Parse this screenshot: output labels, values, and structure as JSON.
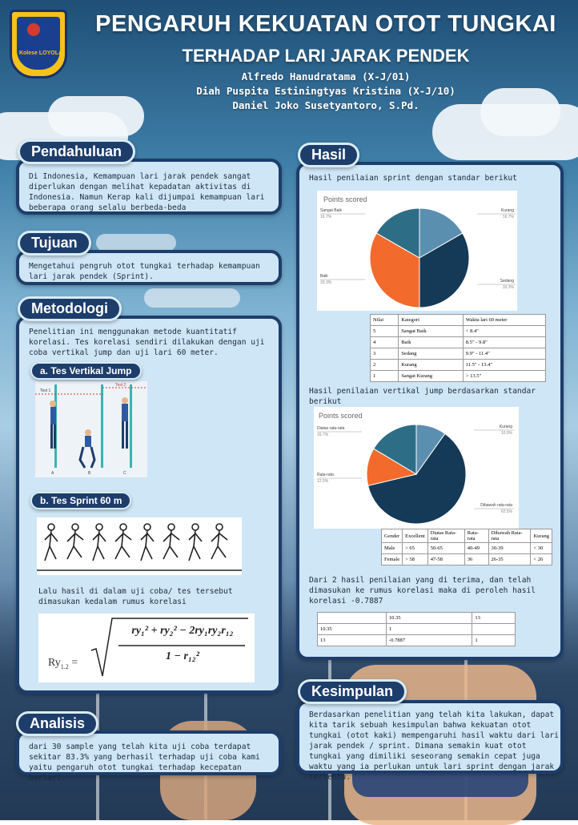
{
  "header": {
    "title_line1": "PENGARUH KEKUATAN OTOT TUNGKAI",
    "title_line2": "TERHADAP LARI JARAK PENDEK",
    "authors": [
      "Alfredo Hanudratama (X-J/01)",
      "Diah Puspita Estiningtyas Kristina (X-J/10)",
      "Daniel Joko Susetyantoro, S.Pd."
    ],
    "logo_text": "Kolese LOYOLA"
  },
  "pendahuluan": {
    "heading": "Pendahuluan",
    "body": "Di Indonesia, Kemampuan lari jarak pendek sangat diperlukan dengan melihat kepadatan aktivitas di Indonesia. Namun Kerap kali dijumpai kemampuan lari beberapa orang selalu berbeda-beda"
  },
  "tujuan": {
    "heading": "Tujuan",
    "body": "Mengetahui pengruh otot tungkai terhadap kemampuan lari jarak pendek (Sprint)."
  },
  "metodologi": {
    "heading": "Metodologi",
    "body": "Penelitian ini menggunakan metode kuantitatif korelasi. Tes korelasi sendiri dilakukan dengan uji coba vertikal jump dan uji lari 60 meter.",
    "sub_a": "a. Tes Vertikal Jump",
    "sub_b": "b. Tes Sprint 60 m",
    "jump_labels": [
      "Test 1",
      "Test 2",
      "A",
      "B",
      "C"
    ],
    "after": "Lalu hasil di dalam uji coba/ tes tersebut dimasukan kedalam rumus korelasi",
    "formula_lhs": "Ry",
    "formula_sub": "1.2",
    "formula_num": "ry₁² + ry₂² − 2ry₁ry₂r₁₂",
    "formula_den": "1 − r₁₂²"
  },
  "analisis": {
    "heading": "Analisis",
    "body": "dari 30 sample yang telah kita uji coba terdapat sekitar 83.3% yang berhasil terhadap uji coba kami yaitu pengaruh otot tungkai terhadap kecepatan berlari."
  },
  "hasil": {
    "heading": "Hasil",
    "intro1": "Hasil penilaian sprint dengan standar berikut",
    "intro2": "Hasil penilaian vertikal jump berdasarkan standar berikut",
    "conclusion": "Dari 2 hasil penilaian yang di terima, dan telah dimasukan ke rumus korelasi maka di peroleh hasil korelasi -0.7887",
    "table1": {
      "header": [
        "Nilai",
        "Kategori",
        "Waktu lari 60 meter"
      ],
      "rows": [
        [
          "5",
          "Sangat Baik",
          "< 8.4\""
        ],
        [
          "4",
          "Baik",
          "8.5\" - 9.8\""
        ],
        [
          "3",
          "Sedang",
          "9.9\" - 11.4\""
        ],
        [
          "2",
          "Kurang",
          "11.5\" - 13.4\""
        ],
        [
          "1",
          "Sangat Kurang",
          "> 13.5\""
        ]
      ]
    },
    "table2": {
      "header": [
        "Gender",
        "Excellent",
        "Diatas Rata-rata",
        "Rata-rata",
        "Dibawah Rata-rata",
        "Kurang"
      ],
      "rows": [
        [
          "Male",
          "> 65",
          "50-65",
          "40-49",
          "30-39",
          "< 30"
        ],
        [
          "Female",
          "> 58",
          "47-58",
          "36",
          "26-35",
          "< 26"
        ]
      ]
    },
    "table3": {
      "rows": [
        [
          "",
          "10.35",
          "13"
        ],
        [
          "10.35",
          "1",
          ""
        ],
        [
          "13",
          "-0.7887",
          "1"
        ]
      ]
    }
  },
  "kesimpulan": {
    "heading": "Kesimpulan",
    "body": "Berdasarkan penelitian yang telah kita lakukan, dapat kita tarik sebuah kesimpulan bahwa kekuatan otot tungkai (otot kaki) mempengaruhi hasil waktu dari lari jarak pendek / sprint. Dimana semakin kuat otot tungkai yang dimiliki seseorang semakin cepat juga waktu yang ia perlukan untuk lari sprint dengan jarak tertentu."
  },
  "chart_data": [
    {
      "type": "pie",
      "title": "Points scored",
      "labels": [
        "Kurang",
        "Sedang",
        "Baik",
        "Sangat Baik"
      ],
      "values": [
        16.7,
        33.3,
        33.3,
        16.7
      ],
      "colors": [
        "#5b8fb0",
        "#153a57",
        "#f26b2d",
        "#2d6e86"
      ],
      "value_labels": [
        "16.7%",
        "33.3%",
        "33.3%",
        "16.7%"
      ]
    },
    {
      "type": "pie",
      "title": "Points scored",
      "labels": [
        "Kurang",
        "Dibawah rata-rata",
        "Rata-rata",
        "Diatas rata-rata"
      ],
      "values": [
        10.0,
        62.5,
        12.5,
        16.7
      ],
      "colors": [
        "#5b8fb0",
        "#153a57",
        "#f26b2d",
        "#2d6e86"
      ],
      "value_labels": [
        "10.0%",
        "62.5%",
        "12.5%",
        "16.7%"
      ]
    }
  ]
}
